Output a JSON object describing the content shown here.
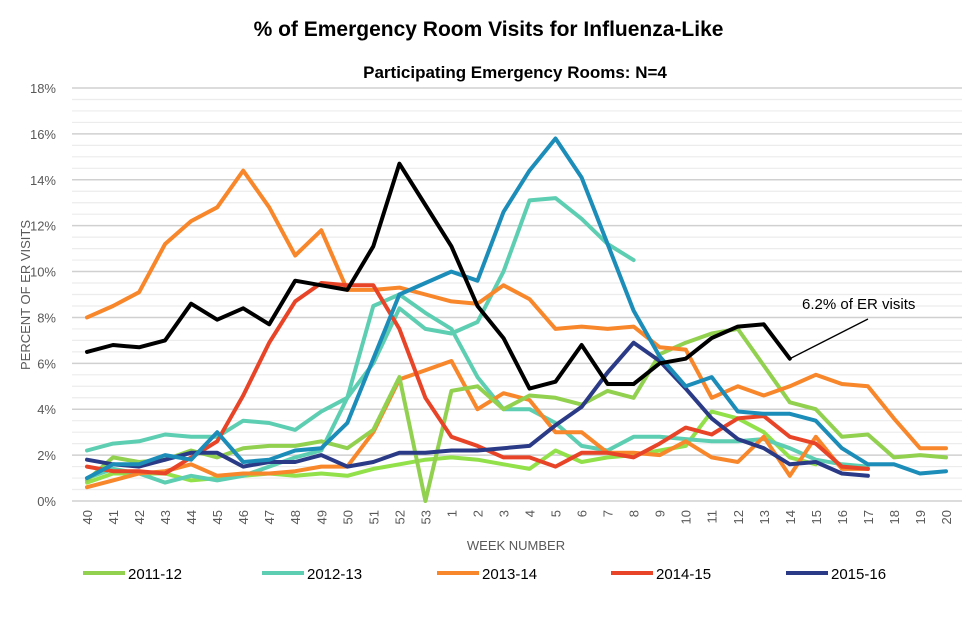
{
  "chart_data": {
    "type": "line",
    "title": "% of Emergency Room Visits for Influenza-Like",
    "subtitle": "Participating Emergency Rooms: N=4",
    "xlabel": "WEEK NUMBER",
    "ylabel": "PERCENT OF ER VISITS",
    "ylim": [
      0,
      18
    ],
    "yticks": [
      "0%",
      "2%",
      "4%",
      "6%",
      "8%",
      "10%",
      "12%",
      "14%",
      "16%",
      "18%"
    ],
    "grid": true,
    "legend_position": "bottom",
    "categories": [
      "40",
      "41",
      "42",
      "43",
      "44",
      "45",
      "46",
      "47",
      "48",
      "49",
      "50",
      "51",
      "52",
      "53",
      "1",
      "2",
      "3",
      "4",
      "5",
      "6",
      "7",
      "8",
      "9",
      "10",
      "11",
      "12",
      "13",
      "14",
      "15",
      "16",
      "17",
      "18",
      "19",
      "20"
    ],
    "annotation": {
      "text": "6.2% of ER visits",
      "week": "14",
      "value": 6.2
    },
    "series": [
      {
        "name": "2011-12",
        "color": "#92D050",
        "values": [
          0.9,
          1.9,
          1.7,
          1.8,
          2.2,
          1.9,
          2.3,
          2.4,
          2.4,
          2.6,
          2.3,
          3.1,
          5.4,
          0.0,
          4.8,
          5.0,
          4.0,
          4.6,
          4.5,
          4.2,
          4.8,
          4.5,
          6.4,
          6.9,
          7.3,
          7.5,
          5.9,
          4.3,
          4.0,
          2.8,
          2.9,
          1.9,
          2.0,
          1.9
        ]
      },
      {
        "name": "2012-13",
        "color": "#5DCEB1",
        "values": [
          2.2,
          2.5,
          2.6,
          2.9,
          2.8,
          2.8,
          3.5,
          3.4,
          3.1,
          3.9,
          4.5,
          6.0,
          8.4,
          7.5,
          7.3,
          7.8,
          10.0,
          13.1,
          13.2,
          12.3,
          11.2,
          10.5,
          null,
          null,
          null,
          null,
          null,
          null,
          null,
          null,
          null,
          null,
          null,
          null
        ]
      },
      {
        "name": "2013-14",
        "color": "#F8862A",
        "values": [
          8.0,
          8.5,
          9.1,
          11.2,
          12.2,
          12.8,
          14.4,
          12.8,
          10.7,
          11.8,
          9.2,
          9.2,
          9.3,
          9.0,
          8.7,
          8.6,
          9.4,
          8.8,
          7.5,
          7.6,
          7.5,
          7.6,
          6.7,
          6.6,
          4.5,
          5.0,
          4.6,
          5.0,
          5.5,
          5.1,
          5.0,
          3.6,
          2.3,
          2.3
        ]
      },
      {
        "name": "2014-15",
        "color": "#E84427",
        "values": [
          1.5,
          1.3,
          1.3,
          1.2,
          1.9,
          2.6,
          4.6,
          6.9,
          8.7,
          9.5,
          9.4,
          9.4,
          7.5,
          4.5,
          2.8,
          2.4,
          1.9,
          1.9,
          1.5,
          2.1,
          2.1,
          1.9,
          2.5,
          3.2,
          2.9,
          3.6,
          3.7,
          2.8,
          2.5,
          1.5,
          1.4,
          null,
          null,
          null
        ]
      },
      {
        "name": "2015-16",
        "color": "#2B3A86",
        "values": [
          1.8,
          1.6,
          1.5,
          1.8,
          2.1,
          2.1,
          1.5,
          1.7,
          1.7,
          2.0,
          1.5,
          1.7,
          2.1,
          2.1,
          2.2,
          2.2,
          2.3,
          2.4,
          3.3,
          4.1,
          5.6,
          6.9,
          6.1,
          4.9,
          3.6,
          2.7,
          2.3,
          1.6,
          1.7,
          1.2,
          1.1,
          null,
          null,
          null
        ]
      },
      {
        "color": "#92E04A",
        "values": [
          0.8,
          1.2,
          1.2,
          1.2,
          0.9,
          1.0,
          1.1,
          1.2,
          1.1,
          1.2,
          1.1,
          1.4,
          1.6,
          1.8,
          1.9,
          1.8,
          1.6,
          1.4,
          2.2,
          1.7,
          1.9,
          2.0,
          2.2,
          2.4,
          3.9,
          3.6,
          3.0,
          1.9,
          1.6,
          null,
          null,
          null,
          null,
          null
        ]
      },
      {
        "color": "#5DCEB1",
        "values": [
          1.0,
          1.4,
          1.2,
          0.8,
          1.1,
          0.9,
          1.1,
          1.5,
          1.9,
          2.2,
          4.5,
          8.5,
          9.0,
          8.2,
          7.5,
          5.4,
          4.0,
          4.0,
          3.4,
          2.4,
          2.2,
          2.8,
          2.8,
          2.7,
          2.6,
          2.6,
          2.7,
          2.3,
          1.8,
          1.6,
          1.5,
          null,
          null,
          null
        ]
      },
      {
        "color": "#F8862A",
        "values": [
          0.6,
          0.9,
          1.2,
          1.3,
          1.6,
          1.1,
          1.2,
          1.2,
          1.3,
          1.5,
          1.5,
          3.0,
          5.3,
          5.7,
          6.1,
          4.0,
          4.7,
          4.4,
          3.0,
          3.0,
          2.1,
          2.1,
          2.0,
          2.6,
          1.9,
          1.7,
          2.8,
          1.1,
          2.8,
          1.4,
          1.4,
          null,
          null,
          null
        ]
      },
      {
        "color": "#1B8DB8",
        "values": [
          1.0,
          1.6,
          1.6,
          2.0,
          1.8,
          3.0,
          1.7,
          1.8,
          2.2,
          2.3,
          3.4,
          6.2,
          9.0,
          9.5,
          10.0,
          9.6,
          12.6,
          14.4,
          15.8,
          14.1,
          11.2,
          8.3,
          6.3,
          5.0,
          5.4,
          3.9,
          3.8,
          3.8,
          3.5,
          2.3,
          1.6,
          1.6,
          1.2,
          1.3
        ]
      },
      {
        "color": "#000000",
        "values": [
          6.5,
          6.8,
          6.7,
          7.0,
          8.6,
          7.9,
          8.4,
          7.7,
          9.6,
          9.4,
          9.2,
          11.1,
          14.7,
          12.9,
          11.1,
          8.5,
          7.1,
          4.9,
          5.2,
          6.8,
          5.1,
          5.1,
          6.0,
          6.2,
          7.1,
          7.6,
          7.7,
          6.2,
          null,
          null,
          null,
          null,
          null,
          null
        ]
      }
    ]
  }
}
